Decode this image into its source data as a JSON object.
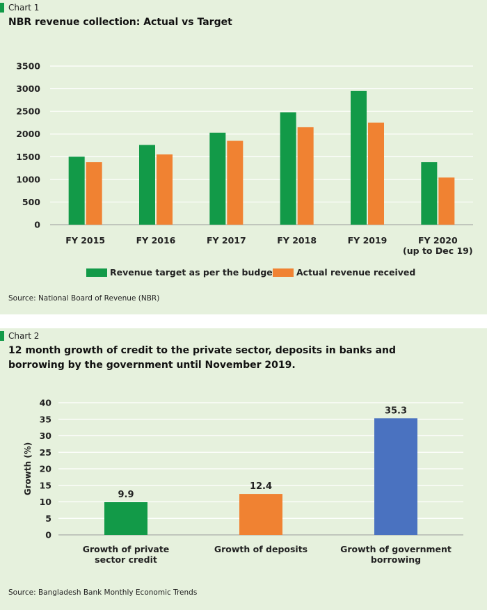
{
  "chart1": {
    "label": "Chart 1",
    "source": "Source: National Board of Revenue (NBR)",
    "chart_data": {
      "type": "bar",
      "title": "NBR revenue collection: Actual vs Target",
      "categories": [
        [
          "FY 2015"
        ],
        [
          "FY 2016"
        ],
        [
          "FY 2017"
        ],
        [
          "FY 2018"
        ],
        [
          "FY 2019"
        ],
        [
          "FY 2020",
          "(up to Dec 19)"
        ]
      ],
      "series": [
        {
          "name": "Revenue target as per the budget",
          "color": "#129a48",
          "values": [
            1500,
            1760,
            2030,
            2480,
            2950,
            1380
          ]
        },
        {
          "name": "Actual revenue received",
          "color": "#f08232",
          "values": [
            1380,
            1550,
            1850,
            2150,
            2250,
            1040
          ]
        }
      ],
      "yticks": [
        0,
        500,
        1000,
        1500,
        2000,
        2500,
        3000,
        3500
      ],
      "ylim": [
        0,
        3500
      ],
      "grid": true,
      "legend": "bottom"
    }
  },
  "chart2": {
    "label": "Chart 2",
    "source": "Source: Bangladesh Bank Monthly Economic Trends",
    "chart_data": {
      "type": "bar",
      "title": "12 month growth of credit to the private sector, deposits in banks and\nborrowing by the government until November 2019.",
      "ylabel": "Growth (%)",
      "categories": [
        [
          "Growth of private",
          "sector credit"
        ],
        [
          "Growth of deposits"
        ],
        [
          "Growth of government",
          "borrowing"
        ]
      ],
      "values": [
        9.9,
        12.4,
        35.3
      ],
      "data_labels": [
        "9.9",
        "12.4",
        "35.3"
      ],
      "colors": [
        "#129a48",
        "#f08232",
        "#4a72c0"
      ],
      "yticks": [
        0,
        5,
        10,
        15,
        20,
        25,
        30,
        35,
        40
      ],
      "ylim": [
        0,
        40
      ],
      "grid": true
    }
  }
}
